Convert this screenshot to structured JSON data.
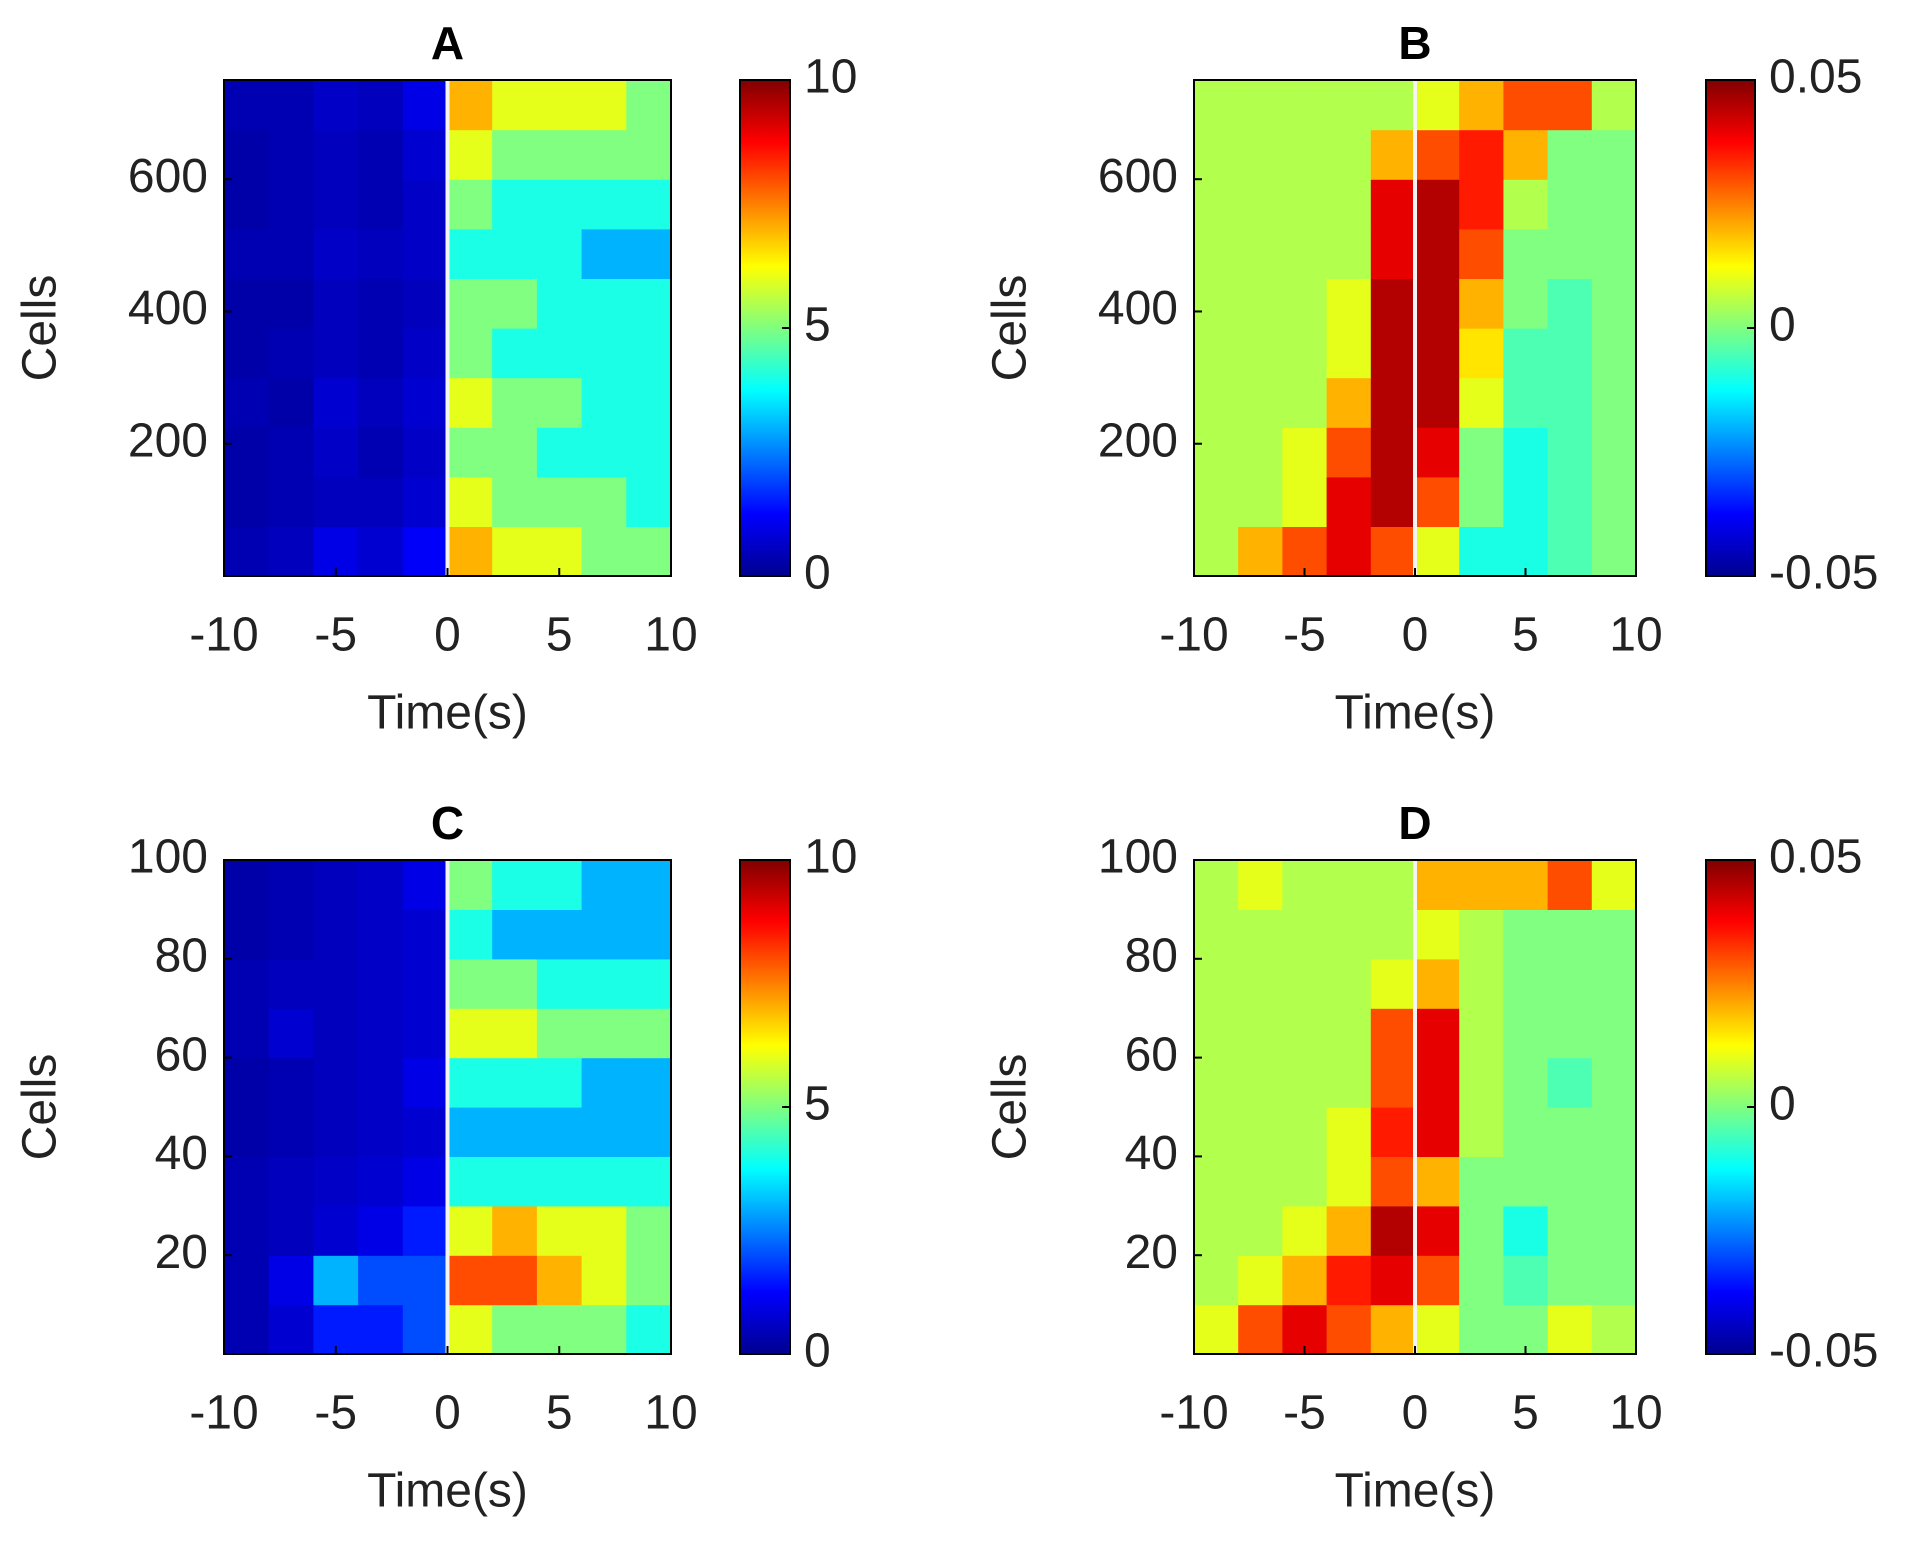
{
  "chart_data": [
    {
      "type": "heatmap",
      "title": "A",
      "xlabel": "Time(s)",
      "ylabel": "Cells",
      "colormap": "jet",
      "vline": 0,
      "x": [
        -9,
        -7,
        -5,
        -3,
        -1,
        1,
        3,
        5,
        7,
        9
      ],
      "y": [
        37.5,
        112.5,
        187.5,
        262.5,
        337.5,
        412.5,
        487.5,
        562.5,
        637.5,
        712.5
      ],
      "z": [
        [
          0.5,
          0.6,
          1,
          0.8,
          1.2,
          7,
          6,
          6,
          5,
          5
        ],
        [
          0.4,
          0.5,
          0.6,
          0.6,
          0.8,
          6,
          5,
          5,
          5,
          4
        ],
        [
          0.4,
          0.5,
          0.7,
          0.5,
          0.7,
          5,
          5,
          4,
          4,
          4
        ],
        [
          0.5,
          0.4,
          0.8,
          0.6,
          0.8,
          6,
          5,
          5,
          4,
          4
        ],
        [
          0.4,
          0.5,
          0.6,
          0.5,
          0.7,
          5,
          4,
          4,
          4,
          4
        ],
        [
          0.4,
          0.4,
          0.6,
          0.5,
          0.6,
          5,
          5,
          4,
          4,
          4
        ],
        [
          0.5,
          0.5,
          0.7,
          0.6,
          0.7,
          4,
          4,
          4,
          3,
          3
        ],
        [
          0.4,
          0.5,
          0.6,
          0.5,
          0.7,
          5,
          4,
          4,
          4,
          4
        ],
        [
          0.4,
          0.5,
          0.6,
          0.5,
          0.8,
          6,
          5,
          5,
          5,
          5
        ],
        [
          0.5,
          0.5,
          0.7,
          0.6,
          1,
          7,
          6,
          6,
          6,
          5
        ]
      ],
      "xlim": [
        -10,
        10
      ],
      "ylim": [
        0,
        750
      ],
      "xticks": [
        -10,
        -5,
        0,
        5,
        10
      ],
      "yticks": [
        200,
        400,
        600
      ],
      "clim": [
        0,
        10
      ],
      "cticks": [
        0,
        5,
        10
      ]
    },
    {
      "type": "heatmap",
      "title": "B",
      "xlabel": "Time(s)",
      "ylabel": "Cells",
      "colormap": "jet",
      "vline": 0,
      "x": [
        -9,
        -7,
        -5,
        -3,
        -1,
        1,
        3,
        5,
        7,
        9
      ],
      "y": [
        37.5,
        112.5,
        187.5,
        262.5,
        337.5,
        412.5,
        487.5,
        562.5,
        637.5,
        712.5
      ],
      "z": [
        [
          0.005,
          0.02,
          0.03,
          0.04,
          0.03,
          0.01,
          -0.01,
          -0.01,
          -0.005,
          0
        ],
        [
          0.005,
          0.005,
          0.01,
          0.04,
          0.045,
          0.03,
          0,
          -0.01,
          -0.005,
          0
        ],
        [
          0.005,
          0.005,
          0.01,
          0.03,
          0.045,
          0.04,
          0,
          -0.01,
          -0.005,
          0
        ],
        [
          0.005,
          0.005,
          0.005,
          0.02,
          0.045,
          0.045,
          0.01,
          -0.005,
          -0.005,
          0
        ],
        [
          0.005,
          0.005,
          0.005,
          0.01,
          0.045,
          0.045,
          0.015,
          -0.005,
          -0.005,
          0
        ],
        [
          0.005,
          0.005,
          0.005,
          0.01,
          0.045,
          0.045,
          0.02,
          0,
          -0.005,
          0
        ],
        [
          0.005,
          0.005,
          0.005,
          0.005,
          0.04,
          0.045,
          0.03,
          0,
          0,
          0
        ],
        [
          0.005,
          0.005,
          0.005,
          0.005,
          0.04,
          0.045,
          0.035,
          0.005,
          0,
          0
        ],
        [
          0.005,
          0.005,
          0.005,
          0.005,
          0.02,
          0.03,
          0.035,
          0.02,
          0,
          0
        ],
        [
          0.005,
          0.005,
          0.005,
          0.005,
          0.005,
          0.01,
          0.02,
          0.03,
          0.03,
          0.005
        ]
      ],
      "xlim": [
        -10,
        10
      ],
      "ylim": [
        0,
        750
      ],
      "xticks": [
        -10,
        -5,
        0,
        5,
        10
      ],
      "yticks": [
        200,
        400,
        600
      ],
      "clim": [
        -0.05,
        0.05
      ],
      "cticks": [
        -0.05,
        0,
        0.05
      ]
    },
    {
      "type": "heatmap",
      "title": "C",
      "xlabel": "Time(s)",
      "ylabel": "Cells",
      "colormap": "jet",
      "vline": 0,
      "x": [
        -9,
        -7,
        -5,
        -3,
        -1,
        1,
        3,
        5,
        7,
        9
      ],
      "y": [
        5,
        15,
        25,
        35,
        45,
        55,
        65,
        75,
        85,
        95
      ],
      "z": [
        [
          0.5,
          0.8,
          1.5,
          1.5,
          2,
          6,
          5,
          5,
          5,
          4
        ],
        [
          0.5,
          1,
          3,
          2,
          2,
          8,
          8,
          7,
          6,
          5
        ],
        [
          0.5,
          0.6,
          0.8,
          1,
          1.5,
          6,
          7,
          6,
          6,
          5
        ],
        [
          0.5,
          0.6,
          0.7,
          0.8,
          1,
          4,
          4,
          4,
          4,
          4
        ],
        [
          0.4,
          0.5,
          0.6,
          0.7,
          0.8,
          3,
          3,
          3,
          3,
          3
        ],
        [
          0.4,
          0.5,
          0.6,
          0.7,
          1,
          4,
          4,
          4,
          3,
          3
        ],
        [
          0.5,
          0.8,
          0.6,
          0.7,
          0.8,
          6,
          6,
          5,
          5,
          5
        ],
        [
          0.5,
          0.6,
          0.6,
          0.7,
          0.8,
          5,
          5,
          4,
          4,
          4
        ],
        [
          0.4,
          0.5,
          0.6,
          0.7,
          0.8,
          4,
          3,
          3,
          3,
          3
        ],
        [
          0.4,
          0.5,
          0.6,
          0.7,
          1,
          5,
          4,
          4,
          3,
          3
        ]
      ],
      "xlim": [
        -10,
        10
      ],
      "ylim": [
        0,
        100
      ],
      "xticks": [
        -10,
        -5,
        0,
        5,
        10
      ],
      "yticks": [
        20,
        40,
        60,
        80,
        100
      ],
      "clim": [
        0,
        10
      ],
      "cticks": [
        0,
        5,
        10
      ]
    },
    {
      "type": "heatmap",
      "title": "D",
      "xlabel": "Time(s)",
      "ylabel": "Cells",
      "colormap": "jet",
      "vline": 0,
      "x": [
        -9,
        -7,
        -5,
        -3,
        -1,
        1,
        3,
        5,
        7,
        9
      ],
      "y": [
        5,
        15,
        25,
        35,
        45,
        55,
        65,
        75,
        85,
        95
      ],
      "z": [
        [
          0.01,
          0.03,
          0.04,
          0.03,
          0.02,
          0.01,
          0,
          0,
          0.01,
          0.005
        ],
        [
          0.005,
          0.01,
          0.02,
          0.035,
          0.04,
          0.03,
          0,
          -0.005,
          0,
          0
        ],
        [
          0.005,
          0.005,
          0.01,
          0.02,
          0.045,
          0.04,
          0,
          -0.01,
          0,
          0
        ],
        [
          0.005,
          0.005,
          0.005,
          0.01,
          0.03,
          0.02,
          0,
          0,
          0,
          0
        ],
        [
          0.005,
          0.005,
          0.005,
          0.01,
          0.035,
          0.04,
          0.005,
          0,
          0,
          0
        ],
        [
          0.005,
          0.005,
          0.005,
          0.005,
          0.03,
          0.04,
          0.005,
          0,
          -0.005,
          0
        ],
        [
          0.005,
          0.005,
          0.005,
          0.005,
          0.03,
          0.04,
          0.005,
          0,
          0,
          0
        ],
        [
          0.005,
          0.005,
          0.005,
          0.005,
          0.01,
          0.02,
          0.005,
          0,
          0,
          0
        ],
        [
          0.005,
          0.005,
          0.005,
          0.005,
          0.005,
          0.01,
          0.005,
          0,
          0,
          0
        ],
        [
          0.005,
          0.01,
          0.005,
          0.005,
          0.005,
          0.02,
          0.02,
          0.02,
          0.03,
          0.01
        ]
      ],
      "xlim": [
        -10,
        10
      ],
      "ylim": [
        0,
        100
      ],
      "xticks": [
        -10,
        -5,
        0,
        5,
        10
      ],
      "yticks": [
        20,
        40,
        60,
        80,
        100
      ],
      "clim": [
        -0.05,
        0.05
      ],
      "cticks": [
        -0.05,
        0,
        0.05
      ]
    }
  ]
}
